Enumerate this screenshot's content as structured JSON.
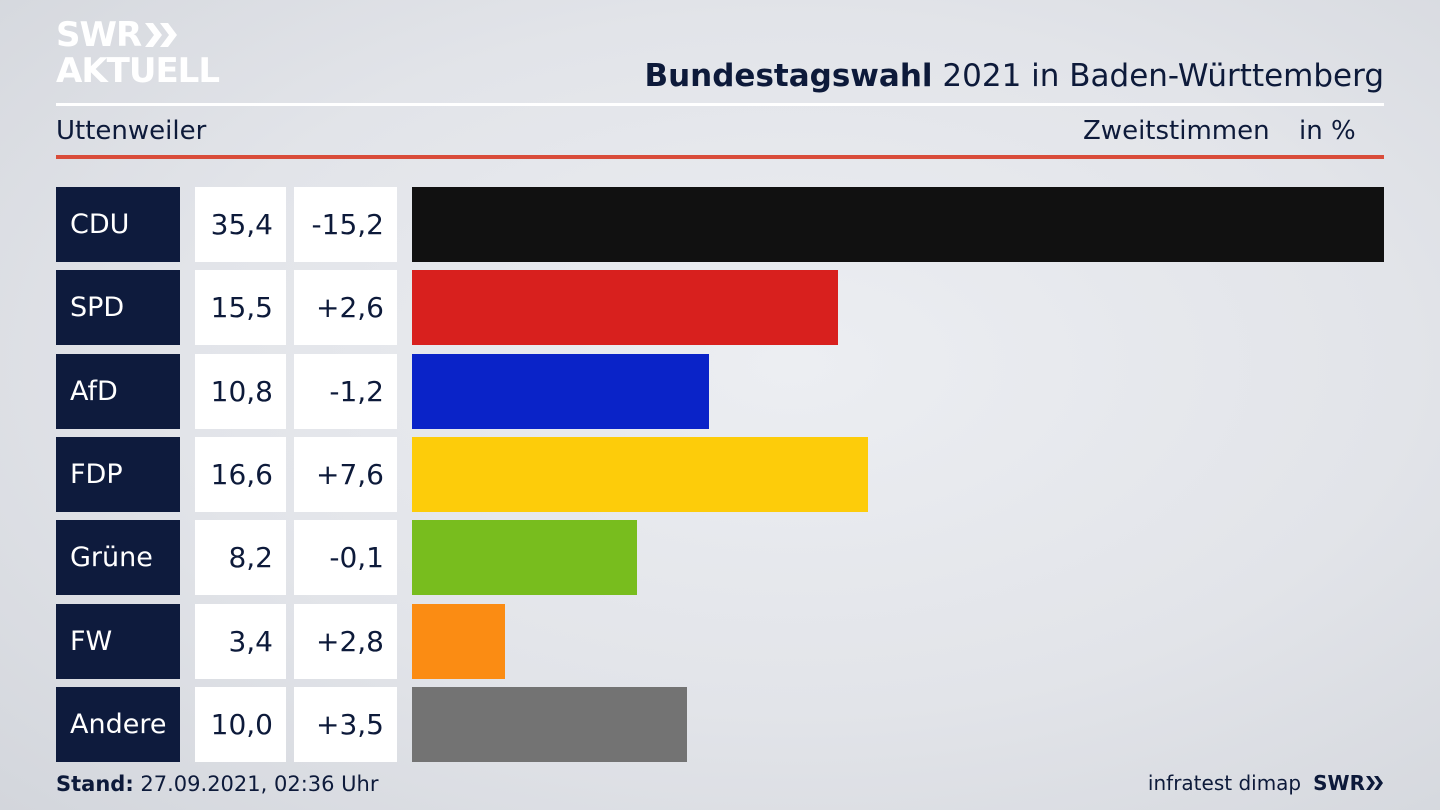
{
  "brand": {
    "logo_line1": "SWR",
    "logo_line2": "AKTUELL",
    "footer_brand": "SWR",
    "logo_color": "#ffffff"
  },
  "header": {
    "title_bold": "Bundestagswahl",
    "title_rest": " 2021 in Baden-Württemberg",
    "region": "Uttenweiler",
    "metric": "Zweitstimmen",
    "unit": "in %"
  },
  "footer": {
    "stand_label": "Stand:",
    "stand_value": " 27.09.2021, 02:36 Uhr",
    "source": "infratest dimap"
  },
  "chart_data": {
    "type": "bar",
    "orientation": "horizontal",
    "categories": [
      "CDU",
      "SPD",
      "AfD",
      "FDP",
      "Grüne",
      "FW",
      "Andere"
    ],
    "values": [
      35.4,
      15.5,
      10.8,
      16.6,
      8.2,
      3.4,
      10.0
    ],
    "values_label": [
      "35,4",
      "15,5",
      "10,8",
      "16,6",
      "8,2",
      "3,4",
      "10,0"
    ],
    "diff_label": [
      "-15,2",
      "+2,6",
      "-1,2",
      "+7,6",
      "-0,1",
      "+2,8",
      "+3,5"
    ],
    "colors": [
      "#111111",
      "#d8201e",
      "#0a23c8",
      "#fdcc0a",
      "#78bd1e",
      "#fb8c13",
      "#737373"
    ],
    "xlim": [
      0,
      35.4
    ],
    "grid": false,
    "legend": "none"
  }
}
